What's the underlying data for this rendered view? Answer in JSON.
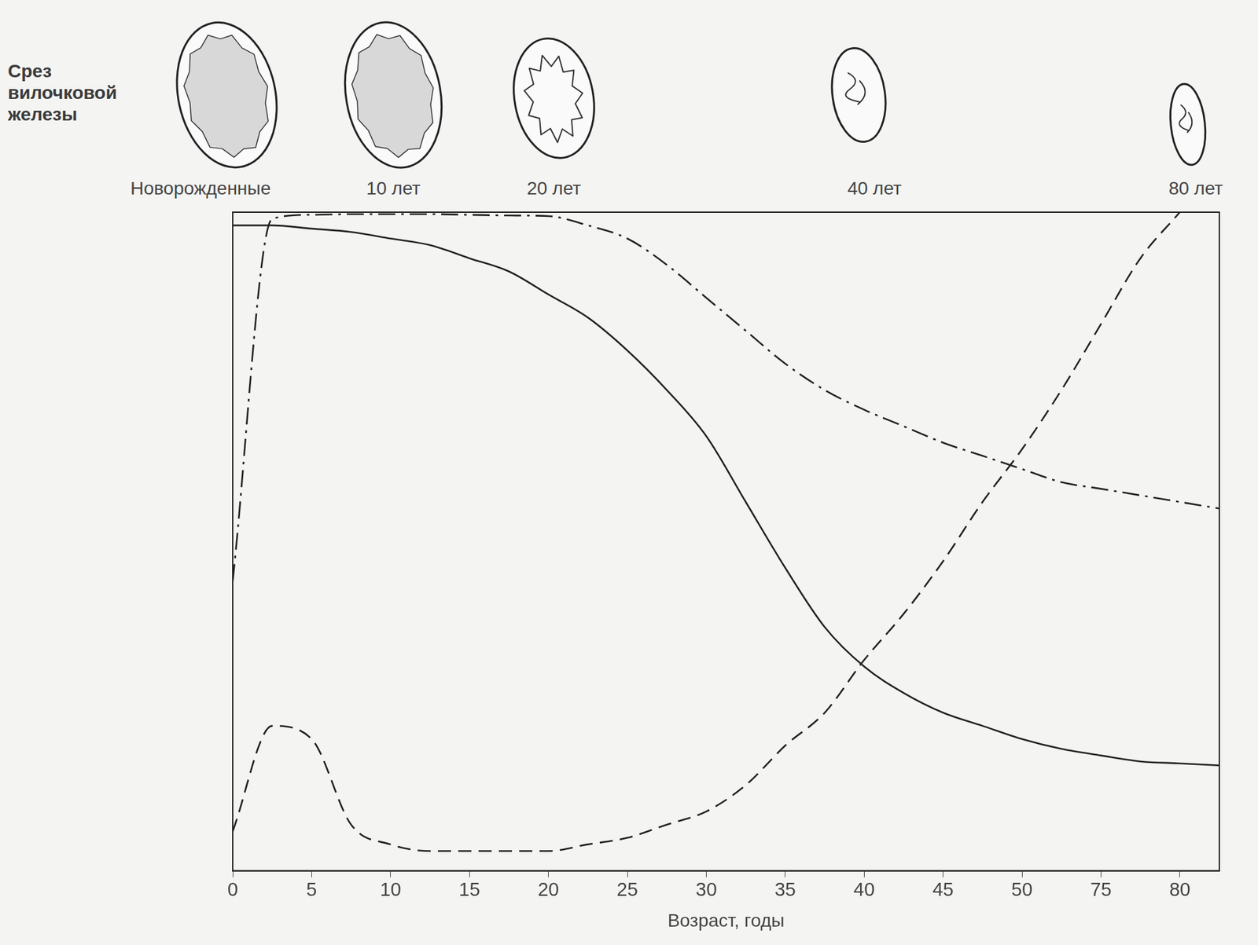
{
  "chart_data": {
    "type": "line",
    "annotations": {
      "heading": "Срез вилочковой железы",
      "sections": [
        "Новорожденные",
        "10 лет",
        "20 лет",
        "40 лет",
        "80 лет"
      ]
    },
    "xlabel": "Возраст, годы",
    "categories": [
      "0",
      null,
      "5",
      null,
      "10",
      null,
      "15",
      null,
      "20",
      null,
      "25",
      null,
      "30",
      null,
      "35",
      null,
      "40",
      null,
      "45",
      null,
      "50",
      null,
      "75",
      null,
      "80",
      null
    ],
    "series": [
      {
        "color": "#222222",
        "line_style": "solid",
        "values": [
          98,
          98,
          97.5,
          97,
          96,
          95,
          93,
          91,
          87.5,
          84,
          79,
          73,
          66,
          56,
          46,
          37,
          31,
          27,
          24,
          22,
          20,
          18.5,
          17.5,
          16.6,
          16.3,
          16
        ]
      },
      {
        "color": "#222222",
        "line_style": "dashdot",
        "values": [
          44,
          99,
          99.6,
          99.7,
          99.7,
          99.7,
          99.6,
          99.5,
          99.4,
          98,
          96,
          92,
          87,
          82,
          77,
          73,
          70,
          67.5,
          65,
          63,
          61,
          59,
          58,
          57,
          56,
          55
        ]
      },
      {
        "color": "#222222",
        "line_style": "dashed",
        "values": [
          6,
          22,
          20,
          7,
          4,
          3,
          3,
          3,
          3,
          4,
          5,
          7,
          9,
          13,
          19,
          24,
          32,
          39,
          47,
          56,
          64,
          73,
          83,
          93,
          100,
          null
        ]
      }
    ],
    "ylim": [
      0,
      100
    ],
    "tick_labels": "x",
    "grid": false
  }
}
